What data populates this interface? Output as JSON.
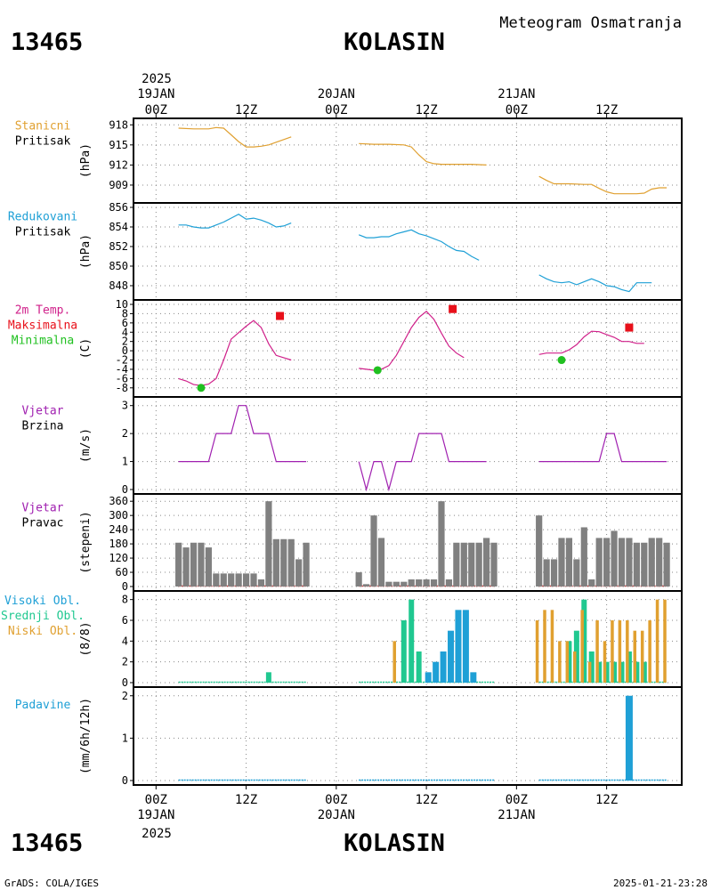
{
  "header": {
    "station_id": "13465",
    "station_name": "KOLASIN",
    "product_title": "Meteogram Osmatranja"
  },
  "footer": {
    "station_id": "13465",
    "station_name": "KOLASIN",
    "credit": "GrADS: COLA/IGES",
    "timestamp": "2025-01-21-23:28"
  },
  "time_axis": {
    "top_year": "2025",
    "bottom_year": "2025",
    "tick_labels": [
      "00Z",
      "12Z",
      "00Z",
      "12Z",
      "00Z",
      "12Z"
    ],
    "tick_hours": [
      0,
      12,
      24,
      36,
      48,
      60
    ],
    "date_labels": [
      {
        "hour": 0,
        "label": "19JAN"
      },
      {
        "hour": 24,
        "label": "20JAN"
      },
      {
        "hour": 48,
        "label": "21JAN"
      }
    ],
    "range_hours": [
      -3,
      70
    ]
  },
  "colors": {
    "station_pressure": "#e0a030",
    "reduced_pressure": "#1fa0d6",
    "temperature": "#d0208a",
    "maximum": "#e8101a",
    "minimum": "#20c020",
    "wind": "#a020b0",
    "wind_dir_bars": "#808080",
    "wind_dir_base": "#d04040",
    "cloud_high": "#1fa0d6",
    "cloud_mid": "#20c890",
    "cloud_low": "#e0a030",
    "precip": "#1fa0d6"
  },
  "chart_data": [
    {
      "id": "station_pressure",
      "type": "line",
      "label_lines": [
        "Stanicni",
        "Pritisak"
      ],
      "ylabel": "(hPa)",
      "ylim": [
        907,
        918.3
      ],
      "yticks": [
        909,
        912,
        915,
        918
      ],
      "segments": [
        [
          [
            3,
            917.5
          ],
          [
            5,
            917.4
          ],
          [
            7,
            917.4
          ],
          [
            8,
            917.6
          ],
          [
            9,
            917.5
          ],
          [
            10,
            916.5
          ],
          [
            11,
            915.5
          ],
          [
            12,
            914.7
          ],
          [
            13,
            914.7
          ],
          [
            14,
            914.8
          ],
          [
            15,
            915
          ],
          [
            16,
            915.4
          ],
          [
            17,
            915.8
          ],
          [
            18,
            916.2
          ]
        ],
        [
          [
            27,
            915.2
          ],
          [
            29,
            915.1
          ],
          [
            31,
            915.1
          ],
          [
            33,
            915
          ],
          [
            34,
            914.7
          ],
          [
            35,
            913.5
          ],
          [
            36,
            912.5
          ],
          [
            37,
            912.2
          ],
          [
            38,
            912.1
          ],
          [
            40,
            912.1
          ],
          [
            42,
            912.1
          ],
          [
            44,
            912
          ]
        ],
        [
          [
            51,
            910.3
          ],
          [
            52,
            909.7
          ],
          [
            53,
            909.2
          ],
          [
            55,
            909.2
          ],
          [
            57,
            909.1
          ],
          [
            58,
            909.1
          ],
          [
            59,
            908.5
          ],
          [
            60,
            908
          ],
          [
            61,
            907.7
          ],
          [
            62,
            907.7
          ],
          [
            63,
            907.7
          ],
          [
            64,
            907.7
          ],
          [
            65,
            907.8
          ],
          [
            66,
            908.4
          ],
          [
            67,
            908.6
          ],
          [
            68,
            908.6
          ]
        ]
      ]
    },
    {
      "id": "reduced_pressure",
      "type": "line",
      "label_lines": [
        "Redukovani",
        "Pritisak"
      ],
      "ylabel": "(hPa)",
      "ylim": [
        847,
        856
      ],
      "yticks": [
        848,
        850,
        852,
        854,
        856
      ],
      "segments": [
        [
          [
            3,
            854.2
          ],
          [
            4,
            854.2
          ],
          [
            5,
            854
          ],
          [
            6,
            853.9
          ],
          [
            7,
            853.9
          ],
          [
            8,
            854.2
          ],
          [
            9,
            854.5
          ],
          [
            10,
            854.9
          ],
          [
            11,
            855.3
          ],
          [
            12,
            854.8
          ],
          [
            13,
            854.9
          ],
          [
            14,
            854.7
          ],
          [
            15,
            854.4
          ],
          [
            16,
            854
          ],
          [
            17,
            854.1
          ],
          [
            18,
            854.4
          ]
        ],
        [
          [
            27,
            853.2
          ],
          [
            28,
            852.9
          ],
          [
            29,
            852.9
          ],
          [
            30,
            853
          ],
          [
            31,
            853
          ],
          [
            32,
            853.3
          ],
          [
            33,
            853.5
          ],
          [
            34,
            853.7
          ],
          [
            35,
            853.3
          ],
          [
            36,
            853.1
          ],
          [
            37,
            852.8
          ],
          [
            38,
            852.5
          ],
          [
            39,
            852
          ],
          [
            40,
            851.6
          ],
          [
            41,
            851.5
          ],
          [
            42,
            851
          ],
          [
            43,
            850.6
          ]
        ],
        [
          [
            51,
            849.1
          ],
          [
            52,
            848.7
          ],
          [
            53,
            848.4
          ],
          [
            54,
            848.3
          ],
          [
            55,
            848.4
          ],
          [
            56,
            848.1
          ],
          [
            57,
            848.4
          ],
          [
            58,
            848.7
          ],
          [
            59,
            848.4
          ],
          [
            60,
            848
          ],
          [
            61,
            847.9
          ],
          [
            62,
            847.6
          ],
          [
            63,
            847.4
          ],
          [
            64,
            848.3
          ],
          [
            65,
            848.3
          ],
          [
            66,
            848.3
          ]
        ]
      ]
    },
    {
      "id": "temperature",
      "type": "line",
      "label_lines": [
        "2m Temp.",
        "Maksimalna",
        "Minimalna"
      ],
      "ylabel": "(C)",
      "ylim": [
        -9,
        10
      ],
      "yticks": [
        -8,
        -6,
        -4,
        -2,
        0,
        2,
        4,
        6,
        8,
        10
      ],
      "segments": [
        [
          [
            3,
            -6
          ],
          [
            4,
            -6.5
          ],
          [
            5,
            -7.3
          ],
          [
            6,
            -7.5
          ],
          [
            7,
            -7.2
          ],
          [
            8,
            -6
          ],
          [
            9,
            -2
          ],
          [
            10,
            2.5
          ],
          [
            11,
            3.9
          ],
          [
            12,
            5.3
          ],
          [
            13,
            6.5
          ],
          [
            14,
            5
          ],
          [
            15,
            1.5
          ],
          [
            16,
            -1
          ],
          [
            17,
            -1.5
          ],
          [
            18,
            -2
          ]
        ],
        [
          [
            27,
            -3.8
          ],
          [
            28,
            -4
          ],
          [
            29,
            -4.2
          ],
          [
            30,
            -4
          ],
          [
            31,
            -3.2
          ],
          [
            32,
            -1
          ],
          [
            33,
            2
          ],
          [
            34,
            5
          ],
          [
            35,
            7.2
          ],
          [
            36,
            8.5
          ],
          [
            37,
            6.8
          ],
          [
            38,
            3.8
          ],
          [
            39,
            1
          ],
          [
            40,
            -0.5
          ],
          [
            41,
            -1.5
          ]
        ],
        [
          [
            51,
            -0.8
          ],
          [
            52,
            -0.5
          ],
          [
            53,
            -0.5
          ],
          [
            54,
            -0.5
          ],
          [
            55,
            0.2
          ],
          [
            56,
            1.3
          ],
          [
            57,
            3
          ],
          [
            58,
            4.2
          ],
          [
            59,
            4.1
          ],
          [
            60,
            3.5
          ],
          [
            61,
            2.9
          ],
          [
            62,
            2
          ],
          [
            63,
            2
          ],
          [
            64,
            1.6
          ],
          [
            65,
            1.6
          ]
        ]
      ],
      "maximum": [
        [
          16.5,
          7.5
        ],
        [
          39.5,
          9
        ],
        [
          63,
          5
        ]
      ],
      "minimum": [
        [
          6,
          -8
        ],
        [
          29.5,
          -4.2
        ],
        [
          54,
          -2
        ]
      ]
    },
    {
      "id": "wind_speed",
      "type": "line",
      "label_lines": [
        "Vjetar",
        "Brzina"
      ],
      "ylabel": "(m/s)",
      "ylim": [
        0,
        3.15
      ],
      "yticks": [
        0,
        1,
        2,
        3
      ],
      "segments": [
        [
          [
            3,
            1
          ],
          [
            7,
            1
          ],
          [
            8,
            2
          ],
          [
            10,
            2
          ],
          [
            11,
            3
          ],
          [
            12,
            3
          ],
          [
            13,
            2
          ],
          [
            15,
            2
          ],
          [
            16,
            1
          ],
          [
            20,
            1
          ]
        ],
        [
          [
            27,
            1
          ],
          [
            28,
            0
          ],
          [
            29,
            1
          ],
          [
            30,
            1
          ],
          [
            31,
            0
          ],
          [
            32,
            1
          ],
          [
            34,
            1
          ],
          [
            35,
            2
          ],
          [
            38,
            2
          ],
          [
            39,
            1
          ],
          [
            44,
            1
          ]
        ],
        [
          [
            51,
            1
          ],
          [
            59,
            1
          ],
          [
            60,
            2
          ],
          [
            61,
            2
          ],
          [
            62,
            1
          ],
          [
            68,
            1
          ]
        ]
      ]
    },
    {
      "id": "wind_direction",
      "type": "bar",
      "label_lines": [
        "Vjetar",
        "Pravac"
      ],
      "ylabel": "(stepeni)",
      "ylim": [
        0,
        372
      ],
      "yticks": [
        0,
        60,
        120,
        180,
        240,
        300,
        360
      ],
      "bars": [
        [
          3,
          185
        ],
        [
          4,
          165
        ],
        [
          5,
          185
        ],
        [
          6,
          185
        ],
        [
          7,
          165
        ],
        [
          8,
          55
        ],
        [
          9,
          55
        ],
        [
          10,
          55
        ],
        [
          11,
          55
        ],
        [
          12,
          55
        ],
        [
          13,
          55
        ],
        [
          14,
          30
        ],
        [
          15,
          360
        ],
        [
          16,
          200
        ],
        [
          17,
          200
        ],
        [
          18,
          200
        ],
        [
          19,
          115
        ],
        [
          20,
          185
        ],
        [
          27,
          60
        ],
        [
          28,
          10
        ],
        [
          29,
          300
        ],
        [
          30,
          205
        ],
        [
          31,
          20
        ],
        [
          32,
          20
        ],
        [
          33,
          20
        ],
        [
          34,
          30
        ],
        [
          35,
          30
        ],
        [
          36,
          30
        ],
        [
          37,
          30
        ],
        [
          38,
          360
        ],
        [
          39,
          30
        ],
        [
          40,
          185
        ],
        [
          41,
          185
        ],
        [
          42,
          185
        ],
        [
          43,
          185
        ],
        [
          44,
          205
        ],
        [
          45,
          185
        ],
        [
          51,
          300
        ],
        [
          52,
          115
        ],
        [
          53,
          115
        ],
        [
          54,
          205
        ],
        [
          55,
          205
        ],
        [
          56,
          115
        ],
        [
          57,
          250
        ],
        [
          58,
          30
        ],
        [
          59,
          205
        ],
        [
          60,
          205
        ],
        [
          61,
          235
        ],
        [
          62,
          205
        ],
        [
          63,
          205
        ],
        [
          64,
          185
        ],
        [
          65,
          185
        ],
        [
          66,
          205
        ],
        [
          67,
          205
        ],
        [
          68,
          185
        ]
      ],
      "base_segments": [
        [
          3,
          20
        ],
        [
          27,
          45
        ],
        [
          51,
          68
        ]
      ]
    },
    {
      "id": "clouds",
      "type": "bar",
      "label_lines": [
        "Visoki Obl.",
        "Srednji Obl.",
        "Niski Obl."
      ],
      "ylabel": "(8/8)",
      "ylim": [
        0,
        8.4
      ],
      "yticks": [
        0,
        2,
        4,
        6,
        8
      ],
      "series": [
        {
          "name": "Visoki Obl.",
          "key": "high",
          "offset": 0.25,
          "values": [
            [
              36,
              1
            ],
            [
              37,
              2
            ],
            [
              38,
              3
            ],
            [
              39,
              5
            ],
            [
              40,
              7
            ],
            [
              41,
              7
            ],
            [
              42,
              1
            ]
          ]
        },
        {
          "name": "Srednji Obl.",
          "key": "mid",
          "offset": 0,
          "values": [
            [
              15,
              1
            ],
            [
              33,
              6
            ],
            [
              34,
              8
            ],
            [
              35,
              3
            ],
            [
              55,
              4
            ],
            [
              56,
              5
            ],
            [
              57,
              8
            ],
            [
              58,
              3
            ],
            [
              59,
              2
            ],
            [
              60,
              2
            ],
            [
              61,
              2
            ],
            [
              62,
              2
            ],
            [
              63,
              3
            ],
            [
              64,
              2
            ],
            [
              65,
              2
            ]
          ]
        },
        {
          "name": "Niski Obl.",
          "key": "low",
          "offset": -0.25,
          "values": [
            [
              32,
              4
            ],
            [
              51,
              6
            ],
            [
              52,
              7
            ],
            [
              53,
              7
            ],
            [
              54,
              4
            ],
            [
              55,
              4
            ],
            [
              56,
              3
            ],
            [
              57,
              7
            ],
            [
              58,
              2
            ],
            [
              59,
              6
            ],
            [
              60,
              4
            ],
            [
              61,
              6
            ],
            [
              62,
              6
            ],
            [
              63,
              6
            ],
            [
              64,
              5
            ],
            [
              65,
              5
            ],
            [
              66,
              6
            ],
            [
              67,
              8
            ],
            [
              68,
              8
            ]
          ]
        }
      ],
      "base_segments": [
        [
          3,
          20
        ],
        [
          27,
          45
        ],
        [
          51,
          68
        ]
      ]
    },
    {
      "id": "precipitation",
      "type": "bar",
      "label_lines": [
        "Padavine"
      ],
      "ylabel": "(mm/6h/12h)",
      "ylim": [
        0,
        2.1
      ],
      "yticks": [
        0,
        1,
        2
      ],
      "bars": [
        [
          63,
          2
        ]
      ],
      "base_segments": [
        [
          3,
          20
        ],
        [
          27,
          45
        ],
        [
          51,
          68
        ]
      ]
    }
  ]
}
